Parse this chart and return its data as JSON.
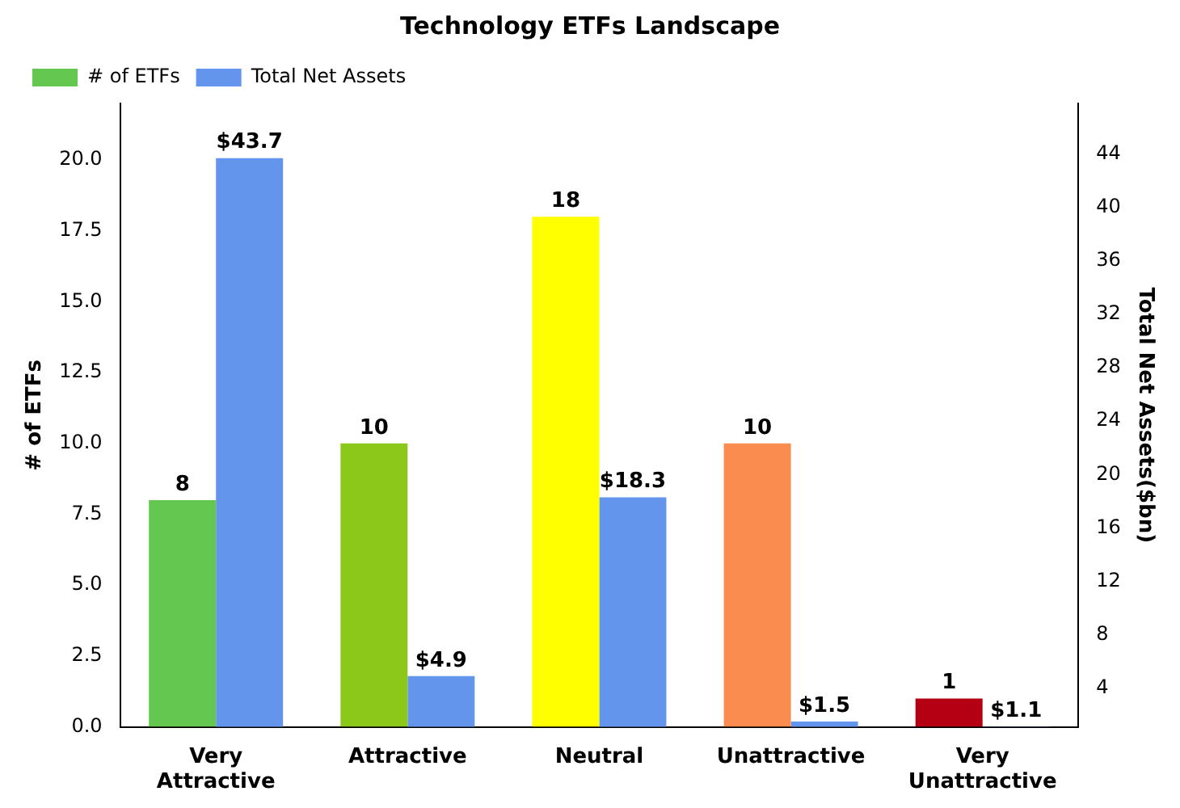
{
  "chart_data": {
    "type": "bar",
    "title": "Technology ETFs Landscape",
    "ylabel": "# of ETFs",
    "y2label": "Total Net Assets($bn)",
    "categories": [
      "Very\nAttractive",
      "Attractive",
      "Neutral",
      "Unattractive",
      "Very\nUnattractive"
    ],
    "series": [
      {
        "name": "# of ETFs",
        "colors": [
          "#64c850",
          "#8cc819",
          "#ffff00",
          "#fa8c50",
          "#b40012"
        ],
        "values": [
          8,
          10,
          18,
          10,
          1
        ],
        "value_labels": [
          "8",
          "10",
          "18",
          "10",
          "1"
        ]
      },
      {
        "name": "Total Net Assets",
        "color": "#6495ed",
        "axis": "y2",
        "values": [
          43.7,
          4.9,
          18.3,
          1.5,
          1.1
        ],
        "value_labels": [
          "$43.7",
          "$4.9",
          "$18.3",
          "$1.5",
          "$1.1"
        ]
      }
    ],
    "ylim": [
      0,
      22
    ],
    "yticks": [
      {
        "value": 0,
        "label": "0.0"
      },
      {
        "value": 2.5,
        "label": "2.5"
      },
      {
        "value": 5,
        "label": "5.0"
      },
      {
        "value": 7.5,
        "label": "7.5"
      },
      {
        "value": 10,
        "label": "10.0"
      },
      {
        "value": 12.5,
        "label": "12.5"
      },
      {
        "value": 15,
        "label": "15.0"
      },
      {
        "value": 17.5,
        "label": "17.5"
      },
      {
        "value": 20,
        "label": "20.0"
      }
    ],
    "y2lim": [
      1.1,
      47.8
    ],
    "y2ticks": [
      4,
      8,
      12,
      16,
      20,
      24,
      28,
      32,
      36,
      40,
      44
    ],
    "legend": "top left",
    "grid": false
  }
}
